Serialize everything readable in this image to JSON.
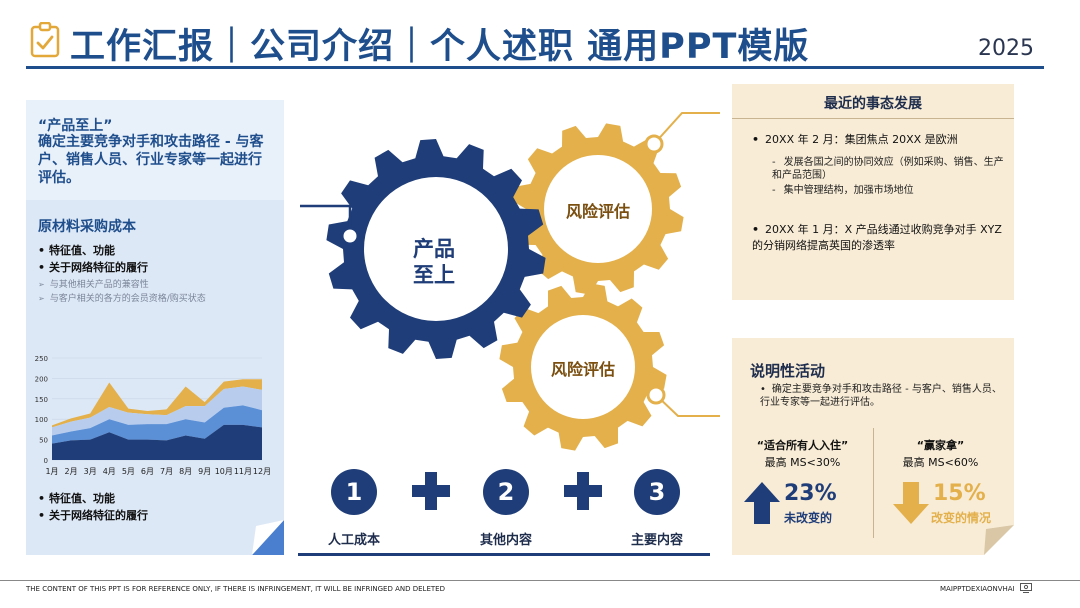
{
  "header": {
    "title": "工作汇报｜公司介绍｜个人述职 通用PPT模版",
    "year": "2025",
    "icon": "clipboard-check-icon"
  },
  "left_panel": {
    "quote_title": "“产品至上”",
    "quote_body": "确定主要竞争对手和攻击路径 - 与客户、销售人员、行业专家等一起进行评估。",
    "section_title": "原材料采购成本",
    "bullets_top": [
      "特征值、功能",
      "关于网络特征的履行"
    ],
    "sub_bullets": [
      "与其他相关产品的兼容性",
      "与客户相关的各方的会员资格/购买状态"
    ],
    "bullets_bottom": [
      "特征值、功能",
      "关于网络特征的履行"
    ]
  },
  "chart_data": {
    "type": "area",
    "categories": [
      "1月",
      "2月",
      "3月",
      "4月",
      "5月",
      "6月",
      "7月",
      "8月",
      "9月",
      "10月",
      "11月",
      "12月"
    ],
    "ylim": [
      0,
      250
    ],
    "yticks": [
      0,
      50,
      100,
      150,
      200,
      250
    ],
    "stacked": true,
    "series": [
      {
        "color": "#1f3d78",
        "values": [
          40,
          48,
          50,
          68,
          50,
          50,
          48,
          60,
          52,
          86,
          86,
          80
        ]
      },
      {
        "color": "#5b8fd6",
        "values": [
          20,
          22,
          28,
          32,
          36,
          38,
          40,
          40,
          40,
          42,
          48,
          42
        ]
      },
      {
        "color": "#b8cdee",
        "values": [
          20,
          24,
          26,
          30,
          30,
          24,
          22,
          32,
          40,
          46,
          46,
          50
        ]
      },
      {
        "color": "#e3b04b",
        "values": [
          5,
          8,
          10,
          60,
          10,
          8,
          14,
          48,
          10,
          18,
          18,
          26
        ]
      }
    ]
  },
  "gears": {
    "center_label": "产品\n至上",
    "gear2_label": "风险评估",
    "gear3_label": "风险评估",
    "colors": {
      "navy": "#1f3d78",
      "gold": "#e3b04b",
      "dark_gold": "#7a4f10"
    }
  },
  "right_top": {
    "title": "最近的事态发展",
    "items": [
      {
        "text": "20XX 年 2 月：集团焦点 20XX 是欧洲",
        "subs": [
          "发展各国之间的协同效应（例如采购、销售、生产和产品范围）",
          "集中管理结构，加强市场地位"
        ]
      },
      {
        "text": "20XX 年 1 月：X 产品线通过收购竞争对手 XYZ 的分销网络提高英国的渗透率",
        "subs": []
      }
    ]
  },
  "right_bottom": {
    "title": "说明性活动",
    "text": "确定主要竞争对手和攻击路径 - 与客户、销售人员、行业专家等一起进行评估。",
    "stat_left": {
      "title": "“适合所有人入住”",
      "sub": "最高 MS<30%",
      "value": "23%",
      "desc": "未改变的",
      "color": "#1f3d78",
      "icon": "arrow-up-icon"
    },
    "stat_right": {
      "title": "“赢家拿”",
      "sub": "最高 MS<60%",
      "value": "15%",
      "desc": "改变的情况",
      "color": "#e3b04b",
      "icon": "arrow-down-icon"
    }
  },
  "steps": [
    {
      "num": "1",
      "label": "人工成本"
    },
    {
      "num": "2",
      "label": "其他内容"
    },
    {
      "num": "3",
      "label": "主要内容"
    }
  ],
  "footer": {
    "left": "THE CONTENT OF THIS PPT IS FOR REFERENCE ONLY, IF THERE IS INFRINGEMENT, IT WILL BE INFRINGED AND DELETED",
    "right": "MAIPPTDEXIAONVHAI"
  }
}
